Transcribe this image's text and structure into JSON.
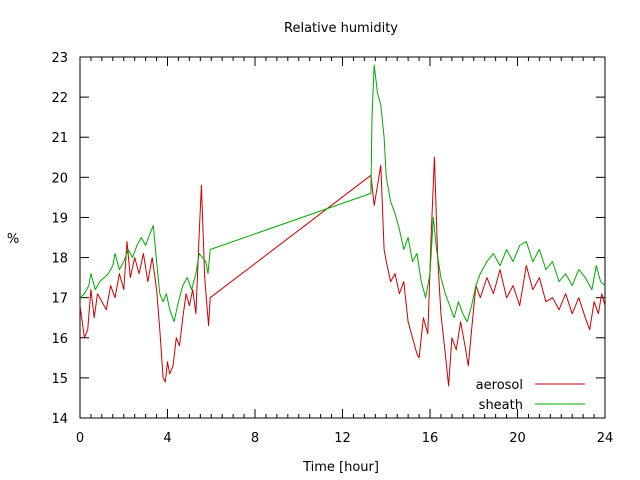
{
  "chart_data": {
    "type": "line",
    "title": "Relative humidity",
    "xlabel": "Time [hour]",
    "ylabel": "%",
    "xlim": [
      0,
      24
    ],
    "ylim": [
      14,
      23
    ],
    "xticks": [
      0,
      4,
      8,
      12,
      16,
      20,
      24
    ],
    "yticks": [
      14,
      15,
      16,
      17,
      18,
      19,
      20,
      21,
      22,
      23
    ],
    "grid": false,
    "legend": "bottom-right",
    "series": [
      {
        "name": "aerosol",
        "color": "#cc0000",
        "points": [
          [
            0.0,
            16.8
          ],
          [
            0.2,
            16.0
          ],
          [
            0.35,
            16.2
          ],
          [
            0.5,
            17.2
          ],
          [
            0.65,
            16.5
          ],
          [
            0.8,
            17.1
          ],
          [
            1.0,
            16.9
          ],
          [
            1.2,
            16.7
          ],
          [
            1.4,
            17.3
          ],
          [
            1.6,
            17.0
          ],
          [
            1.8,
            17.6
          ],
          [
            2.0,
            17.2
          ],
          [
            2.15,
            18.4
          ],
          [
            2.3,
            17.5
          ],
          [
            2.5,
            18.0
          ],
          [
            2.7,
            17.6
          ],
          [
            2.9,
            18.1
          ],
          [
            3.1,
            17.4
          ],
          [
            3.3,
            18.0
          ],
          [
            3.5,
            17.2
          ],
          [
            3.65,
            16.2
          ],
          [
            3.8,
            15.0
          ],
          [
            3.9,
            14.9
          ],
          [
            4.0,
            15.4
          ],
          [
            4.1,
            15.1
          ],
          [
            4.25,
            15.3
          ],
          [
            4.4,
            16.0
          ],
          [
            4.55,
            15.8
          ],
          [
            4.7,
            16.5
          ],
          [
            4.85,
            17.1
          ],
          [
            5.0,
            16.8
          ],
          [
            5.15,
            17.2
          ],
          [
            5.3,
            16.6
          ],
          [
            5.45,
            18.6
          ],
          [
            5.55,
            19.8
          ],
          [
            5.7,
            17.5
          ],
          [
            5.8,
            16.8
          ],
          [
            5.88,
            16.3
          ],
          [
            5.95,
            17.0
          ],
          [
            13.3,
            20.05
          ],
          [
            13.45,
            19.3
          ],
          [
            13.6,
            19.8
          ],
          [
            13.75,
            20.3
          ],
          [
            13.9,
            18.2
          ],
          [
            14.0,
            17.9
          ],
          [
            14.2,
            17.4
          ],
          [
            14.4,
            17.6
          ],
          [
            14.6,
            17.1
          ],
          [
            14.8,
            17.4
          ],
          [
            15.0,
            16.4
          ],
          [
            15.2,
            16.0
          ],
          [
            15.4,
            15.6
          ],
          [
            15.5,
            15.5
          ],
          [
            15.7,
            16.5
          ],
          [
            15.9,
            16.1
          ],
          [
            16.05,
            18.5
          ],
          [
            16.2,
            20.5
          ],
          [
            16.35,
            18.0
          ],
          [
            16.5,
            16.6
          ],
          [
            16.7,
            15.6
          ],
          [
            16.85,
            14.8
          ],
          [
            17.0,
            16.0
          ],
          [
            17.2,
            15.7
          ],
          [
            17.4,
            16.4
          ],
          [
            17.6,
            15.8
          ],
          [
            17.75,
            15.3
          ],
          [
            17.9,
            16.2
          ],
          [
            18.1,
            17.3
          ],
          [
            18.3,
            17.0
          ],
          [
            18.6,
            17.5
          ],
          [
            18.9,
            17.1
          ],
          [
            19.2,
            17.7
          ],
          [
            19.5,
            17.0
          ],
          [
            19.8,
            17.3
          ],
          [
            20.1,
            16.8
          ],
          [
            20.4,
            17.8
          ],
          [
            20.7,
            17.2
          ],
          [
            21.0,
            17.5
          ],
          [
            21.3,
            16.9
          ],
          [
            21.6,
            17.0
          ],
          [
            21.9,
            16.7
          ],
          [
            22.2,
            17.1
          ],
          [
            22.5,
            16.6
          ],
          [
            22.8,
            17.0
          ],
          [
            23.1,
            16.5
          ],
          [
            23.3,
            16.2
          ],
          [
            23.5,
            16.9
          ],
          [
            23.7,
            16.6
          ],
          [
            23.85,
            17.1
          ],
          [
            24.0,
            16.8
          ]
        ]
      },
      {
        "name": "sheath",
        "color": "#00aa00",
        "points": [
          [
            0.0,
            17.0
          ],
          [
            0.2,
            17.1
          ],
          [
            0.4,
            17.3
          ],
          [
            0.5,
            17.6
          ],
          [
            0.7,
            17.2
          ],
          [
            0.9,
            17.4
          ],
          [
            1.1,
            17.5
          ],
          [
            1.3,
            17.6
          ],
          [
            1.5,
            17.8
          ],
          [
            1.6,
            18.1
          ],
          [
            1.8,
            17.7
          ],
          [
            2.0,
            17.9
          ],
          [
            2.2,
            18.2
          ],
          [
            2.4,
            18.0
          ],
          [
            2.6,
            18.3
          ],
          [
            2.8,
            18.5
          ],
          [
            3.0,
            18.3
          ],
          [
            3.2,
            18.6
          ],
          [
            3.35,
            18.8
          ],
          [
            3.5,
            17.9
          ],
          [
            3.65,
            17.1
          ],
          [
            3.8,
            16.9
          ],
          [
            3.95,
            17.1
          ],
          [
            4.1,
            16.7
          ],
          [
            4.3,
            16.4
          ],
          [
            4.5,
            16.9
          ],
          [
            4.7,
            17.3
          ],
          [
            4.9,
            17.5
          ],
          [
            5.1,
            17.2
          ],
          [
            5.3,
            17.6
          ],
          [
            5.45,
            18.1
          ],
          [
            5.6,
            18.0
          ],
          [
            5.75,
            17.9
          ],
          [
            5.85,
            17.6
          ],
          [
            5.95,
            18.2
          ],
          [
            13.3,
            19.6
          ],
          [
            13.35,
            21.5
          ],
          [
            13.45,
            22.8
          ],
          [
            13.6,
            22.1
          ],
          [
            13.75,
            21.8
          ],
          [
            13.9,
            21.0
          ],
          [
            14.0,
            20.0
          ],
          [
            14.2,
            19.4
          ],
          [
            14.4,
            19.1
          ],
          [
            14.6,
            18.7
          ],
          [
            14.8,
            18.2
          ],
          [
            15.0,
            18.5
          ],
          [
            15.2,
            17.9
          ],
          [
            15.4,
            18.1
          ],
          [
            15.6,
            17.4
          ],
          [
            15.8,
            17.0
          ],
          [
            16.0,
            17.6
          ],
          [
            16.15,
            19.0
          ],
          [
            16.3,
            18.2
          ],
          [
            16.5,
            17.5
          ],
          [
            16.7,
            17.1
          ],
          [
            16.9,
            16.8
          ],
          [
            17.1,
            16.5
          ],
          [
            17.3,
            16.9
          ],
          [
            17.5,
            16.6
          ],
          [
            17.7,
            16.4
          ],
          [
            17.9,
            16.8
          ],
          [
            18.1,
            17.3
          ],
          [
            18.3,
            17.6
          ],
          [
            18.6,
            17.9
          ],
          [
            18.9,
            18.1
          ],
          [
            19.2,
            17.8
          ],
          [
            19.5,
            18.2
          ],
          [
            19.8,
            17.9
          ],
          [
            20.1,
            18.3
          ],
          [
            20.4,
            18.4
          ],
          [
            20.7,
            17.9
          ],
          [
            21.0,
            18.2
          ],
          [
            21.3,
            17.7
          ],
          [
            21.6,
            17.9
          ],
          [
            21.9,
            17.4
          ],
          [
            22.2,
            17.6
          ],
          [
            22.5,
            17.3
          ],
          [
            22.8,
            17.7
          ],
          [
            23.1,
            17.5
          ],
          [
            23.4,
            17.2
          ],
          [
            23.6,
            17.8
          ],
          [
            23.8,
            17.4
          ],
          [
            24.0,
            17.3
          ]
        ]
      }
    ]
  }
}
